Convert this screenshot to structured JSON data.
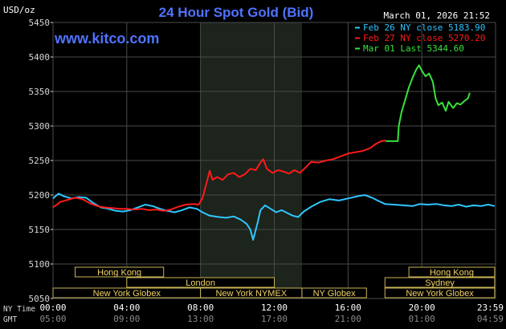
{
  "header": {
    "title": "24 Hour Spot Gold (Bid)",
    "datetime": "March 01, 2026 21:52",
    "units": "USD/oz",
    "source": "www.kitco.com"
  },
  "colors": {
    "background": "#000000",
    "plot_bg": "#000000",
    "shade": "#1c241c",
    "grid": "#4a4a4a",
    "title": "#4f73ff",
    "source": "#4f73ff",
    "text": "#ffffff",
    "axis_text": "#d6d6d6",
    "session_bg": "#000000",
    "session_border": "#c9b458",
    "session_text": "#f0d264",
    "series_feb26": "#2fc7ff",
    "series_feb27": "#ff1a1a",
    "series_mar01": "#38e23c"
  },
  "legend": [
    {
      "key": "feb26",
      "text": "Feb 26 NY close 5183.90"
    },
    {
      "key": "feb27",
      "text": "Feb 27 NY close 5270.20"
    },
    {
      "key": "mar01",
      "text": "Mar 01 Last 5344.60"
    }
  ],
  "sessions": {
    "row1": [
      {
        "label": "Hong Kong",
        "start": 1.2,
        "end": 6.0
      },
      {
        "label": "Hong Kong",
        "start": 19.3,
        "end": 23.95
      }
    ],
    "row2": [
      {
        "label": "London",
        "start": 4.0,
        "end": 12.0
      },
      {
        "label": "Sydney",
        "start": 18.0,
        "end": 23.95
      }
    ],
    "row3": [
      {
        "label": "New York Globex",
        "start": 0.0,
        "end": 8.0
      },
      {
        "label": "New York NYMEX",
        "start": 8.0,
        "end": 13.5
      },
      {
        "label": "NY Globex",
        "start": 13.5,
        "end": 17.0
      },
      {
        "label": "New York Globex",
        "start": 18.0,
        "end": 23.95
      }
    ]
  },
  "time_axis": {
    "row_labels": [
      "NY Time",
      "GMT"
    ],
    "ny_ticks": [
      "00:00",
      "04:00",
      "08:00",
      "12:00",
      "16:00",
      "20:00",
      "23:59"
    ],
    "gmt_ticks": [
      "05:00",
      "09:00",
      "13:00",
      "17:00",
      "21:00",
      "01:00",
      "04:59"
    ]
  },
  "chart_data": {
    "type": "line",
    "title": "24 Hour Spot Gold (Bid)",
    "ylabel": "USD/oz",
    "xlabel": "NY Time",
    "xlim": [
      0,
      24
    ],
    "ylim": [
      5050,
      5450
    ],
    "y_ticks": [
      5050,
      5100,
      5150,
      5200,
      5250,
      5300,
      5350,
      5400,
      5450
    ],
    "shaded_region": [
      8.0,
      13.5
    ],
    "grid": true,
    "legend_position": "top-right",
    "series": [
      {
        "name": "Feb 26 NY close 5183.90",
        "color_key": "series_feb26",
        "points": [
          [
            0,
            5195
          ],
          [
            0.3,
            5202
          ],
          [
            0.6,
            5198
          ],
          [
            1.0,
            5195
          ],
          [
            1.4,
            5197
          ],
          [
            1.8,
            5196
          ],
          [
            2.2,
            5188
          ],
          [
            2.6,
            5182
          ],
          [
            3.0,
            5180
          ],
          [
            3.4,
            5177
          ],
          [
            3.8,
            5176
          ],
          [
            4.2,
            5178
          ],
          [
            4.6,
            5182
          ],
          [
            5.0,
            5186
          ],
          [
            5.4,
            5184
          ],
          [
            5.8,
            5180
          ],
          [
            6.2,
            5177
          ],
          [
            6.6,
            5175
          ],
          [
            7.0,
            5178
          ],
          [
            7.4,
            5182
          ],
          [
            7.8,
            5180
          ],
          [
            8.1,
            5175
          ],
          [
            8.5,
            5170
          ],
          [
            9.0,
            5168
          ],
          [
            9.4,
            5167
          ],
          [
            9.8,
            5169
          ],
          [
            10.2,
            5164
          ],
          [
            10.5,
            5158
          ],
          [
            10.7,
            5150
          ],
          [
            10.85,
            5135
          ],
          [
            10.95,
            5145
          ],
          [
            11.1,
            5160
          ],
          [
            11.25,
            5178
          ],
          [
            11.5,
            5185
          ],
          [
            11.8,
            5180
          ],
          [
            12.1,
            5175
          ],
          [
            12.4,
            5178
          ],
          [
            12.7,
            5174
          ],
          [
            13.0,
            5170
          ],
          [
            13.3,
            5168
          ],
          [
            13.6,
            5176
          ],
          [
            14.0,
            5183
          ],
          [
            14.5,
            5190
          ],
          [
            15.0,
            5194
          ],
          [
            15.5,
            5192
          ],
          [
            16.0,
            5195
          ],
          [
            16.5,
            5198
          ],
          [
            16.9,
            5200
          ],
          [
            17.3,
            5196
          ],
          [
            17.6,
            5192
          ],
          [
            18.0,
            5187
          ],
          [
            18.5,
            5186
          ],
          [
            19.0,
            5185
          ],
          [
            19.5,
            5184
          ],
          [
            19.9,
            5187
          ],
          [
            20.3,
            5186
          ],
          [
            20.8,
            5187
          ],
          [
            21.2,
            5185
          ],
          [
            21.6,
            5184
          ],
          [
            22.0,
            5186
          ],
          [
            22.4,
            5183
          ],
          [
            22.8,
            5185
          ],
          [
            23.2,
            5184
          ],
          [
            23.6,
            5186
          ],
          [
            23.95,
            5184
          ]
        ]
      },
      {
        "name": "Feb 27 NY close 5270.20",
        "color_key": "series_feb27",
        "points": [
          [
            0,
            5182
          ],
          [
            0.4,
            5190
          ],
          [
            0.8,
            5193
          ],
          [
            1.2,
            5196
          ],
          [
            1.6,
            5194
          ],
          [
            2.0,
            5188
          ],
          [
            2.4,
            5184
          ],
          [
            2.8,
            5182
          ],
          [
            3.2,
            5181
          ],
          [
            3.6,
            5180
          ],
          [
            4.0,
            5180
          ],
          [
            4.4,
            5179
          ],
          [
            4.8,
            5180
          ],
          [
            5.2,
            5178
          ],
          [
            5.6,
            5179
          ],
          [
            6.0,
            5177
          ],
          [
            6.4,
            5179
          ],
          [
            6.8,
            5183
          ],
          [
            7.2,
            5186
          ],
          [
            7.6,
            5187
          ],
          [
            7.9,
            5186
          ],
          [
            8.1,
            5195
          ],
          [
            8.3,
            5215
          ],
          [
            8.5,
            5235
          ],
          [
            8.65,
            5222
          ],
          [
            8.9,
            5226
          ],
          [
            9.2,
            5222
          ],
          [
            9.5,
            5230
          ],
          [
            9.8,
            5232
          ],
          [
            10.1,
            5226
          ],
          [
            10.4,
            5230
          ],
          [
            10.7,
            5238
          ],
          [
            11.0,
            5236
          ],
          [
            11.2,
            5245
          ],
          [
            11.4,
            5252
          ],
          [
            11.6,
            5238
          ],
          [
            11.9,
            5232
          ],
          [
            12.2,
            5236
          ],
          [
            12.5,
            5234
          ],
          [
            12.8,
            5231
          ],
          [
            13.1,
            5236
          ],
          [
            13.4,
            5232
          ],
          [
            13.7,
            5240
          ],
          [
            14.0,
            5248
          ],
          [
            14.4,
            5247
          ],
          [
            14.8,
            5250
          ],
          [
            15.2,
            5252
          ],
          [
            15.6,
            5256
          ],
          [
            16.0,
            5260
          ],
          [
            16.4,
            5262
          ],
          [
            16.8,
            5264
          ],
          [
            17.2,
            5268
          ],
          [
            17.5,
            5274
          ],
          [
            17.8,
            5278
          ],
          [
            18.05,
            5279
          ]
        ]
      },
      {
        "name": "Mar 01 Last 5344.60",
        "color_key": "series_mar01",
        "points": [
          [
            18.05,
            5278
          ],
          [
            18.7,
            5278
          ],
          [
            18.75,
            5300
          ],
          [
            18.9,
            5320
          ],
          [
            19.1,
            5338
          ],
          [
            19.3,
            5356
          ],
          [
            19.5,
            5370
          ],
          [
            19.7,
            5382
          ],
          [
            19.85,
            5388
          ],
          [
            20.0,
            5380
          ],
          [
            20.2,
            5372
          ],
          [
            20.4,
            5376
          ],
          [
            20.6,
            5364
          ],
          [
            20.75,
            5340
          ],
          [
            20.9,
            5330
          ],
          [
            21.1,
            5334
          ],
          [
            21.3,
            5322
          ],
          [
            21.45,
            5335
          ],
          [
            21.7,
            5326
          ],
          [
            21.9,
            5333
          ],
          [
            22.1,
            5331
          ],
          [
            22.3,
            5336
          ],
          [
            22.5,
            5340
          ],
          [
            22.6,
            5348
          ]
        ]
      }
    ]
  }
}
